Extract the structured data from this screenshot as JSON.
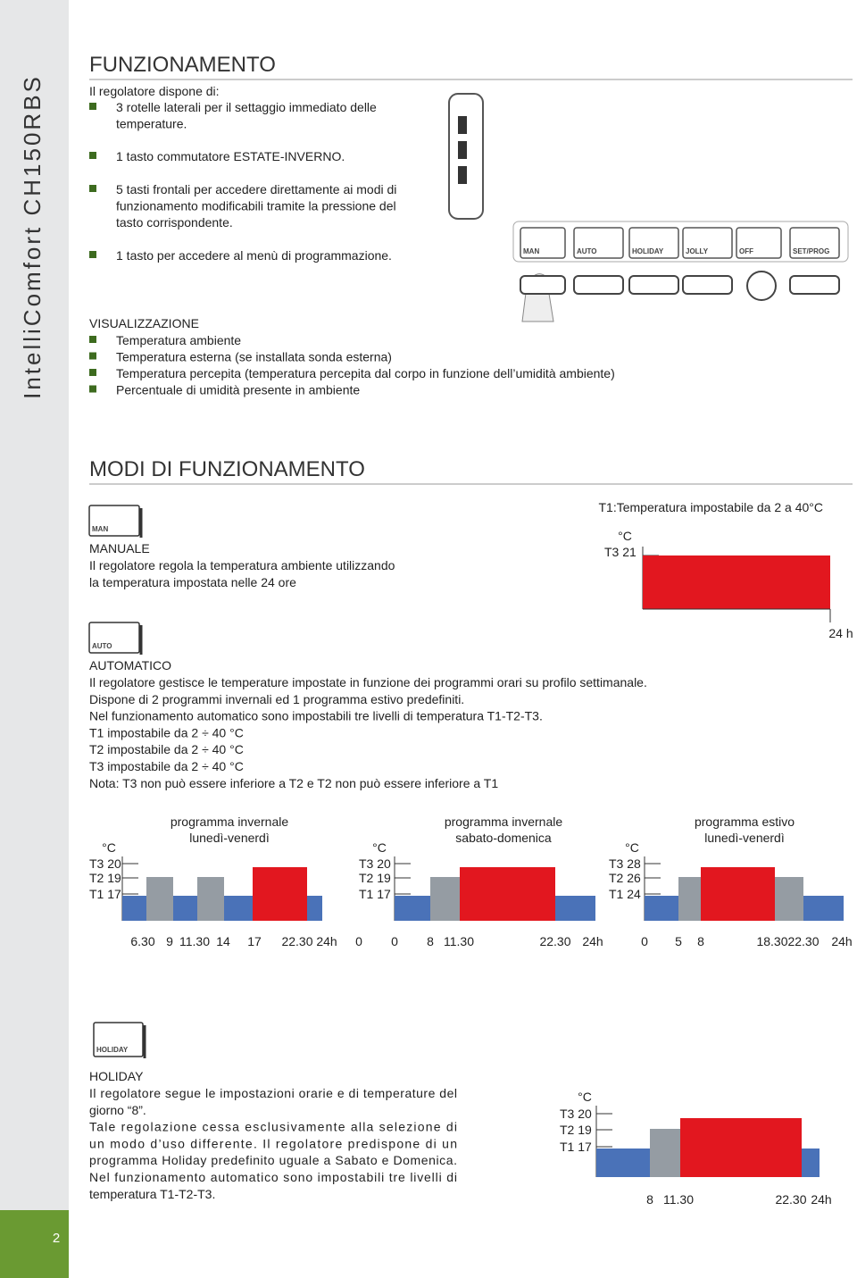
{
  "sidebar": {
    "brand": "IntelliComfort CH150RBS",
    "page_number": "2"
  },
  "funzionamento": {
    "title": "FUNZIONAMENTO",
    "intro": "Il regolatore dispone di:",
    "bullets": [
      [
        "3 rotelle laterali per il settaggio immediato delle",
        "temperature."
      ],
      [
        "1 tasto commutatore ESTATE-INVERNO."
      ],
      [
        "5 tasti frontali per accedere direttamente ai modi di",
        "funzionamento modificabili tramite la pressione del",
        "tasto corrispondente."
      ],
      [
        "1 tasto per accedere al menù di programmazione."
      ]
    ]
  },
  "device": {
    "buttons": [
      "MAN",
      "AUTO",
      "HOLIDAY",
      "JOLLY",
      "OFF",
      "SET/PROG"
    ]
  },
  "visualizzazione": {
    "title": "VISUALIZZAZIONE",
    "bullets": [
      "Temperatura ambiente",
      "Temperatura esterna (se installata sonda esterna)",
      "Temperatura percepita (temperatura percepita dal corpo in funzione dell’umidità ambiente)",
      "Percentuale di umidità presente in ambiente"
    ]
  },
  "modi": {
    "title": "MODI DI FUNZIONAMENTO",
    "manuale": {
      "icon": "MAN",
      "title": "MANUALE",
      "lines": [
        "Il regolatore regola la temperatura ambiente utilizzando",
        "la temperatura impostata nelle 24 ore"
      ],
      "chart": {
        "caption": "T1:Temperatura impostabile da 2 a 40°C",
        "unit": "°C",
        "levels": [
          "T3 21"
        ],
        "x_labels": [
          "24 h"
        ]
      }
    },
    "automatico": {
      "icon": "AUTO",
      "title": "AUTOMATICO",
      "lines": [
        "Il regolatore gestisce le temperature impostate in funzione dei programmi orari su profilo settimanale.",
        "Dispone di 2 programmi invernali ed 1 programma estivo predefiniti.",
        "Nel funzionamento automatico sono impostabili tre livelli di temperatura T1-T2-T3.",
        "T1 impostabile da 2 ÷ 40 °C",
        "T2 impostabile da 2 ÷ 40 °C",
        "T3 impostabile da 2 ÷ 40 °C",
        "Nota: T3 non può essere inferiore a T2 e T2 non può essere inferiore a T1"
      ],
      "charts": [
        {
          "title": [
            "programma invernale",
            "lunedì-venerdì"
          ],
          "unit": "°C",
          "levels": [
            "T3 20",
            "T2 19",
            "T1 17"
          ],
          "x_labels": [
            "6.30",
            "9",
            "11.30",
            "14",
            "17",
            "22.30",
            "24h"
          ]
        },
        {
          "title": [
            "programma invernale",
            "sabato-domenica"
          ],
          "unit": "°C",
          "levels": [
            "T3 20",
            "T2 19",
            "T1 17"
          ],
          "x_labels": [
            "0",
            "0",
            "8",
            "11.30",
            "22.30",
            "24h"
          ]
        },
        {
          "title": [
            "programma estivo",
            "lunedì-venerdì"
          ],
          "unit": "°C",
          "levels": [
            "T3 28",
            "T2 26",
            "T1 24"
          ],
          "x_labels": [
            "0",
            "5",
            "8",
            "18.30",
            "22.30",
            "24h"
          ]
        }
      ]
    },
    "holiday": {
      "icon": "HOLIDAY",
      "title": "HOLIDAY",
      "lines": [
        "Il regolatore segue le impostazioni orarie e di temperature del",
        "giorno “8”.",
        "Tale regolazione cessa esclusivamente alla selezione di",
        "un modo d’uso differente. Il regolatore predispone di un",
        "programma Holiday predefinito uguale a Sabato e Domenica.",
        "Nel funzionamento automatico sono impostabili tre livelli di",
        "temperatura T1-T2-T3."
      ],
      "chart": {
        "unit": "°C",
        "levels": [
          "T3 20",
          "T2 19",
          "T1 17"
        ],
        "x_labels": [
          "8",
          "11.30",
          "22.30",
          "24h"
        ]
      }
    }
  }
}
